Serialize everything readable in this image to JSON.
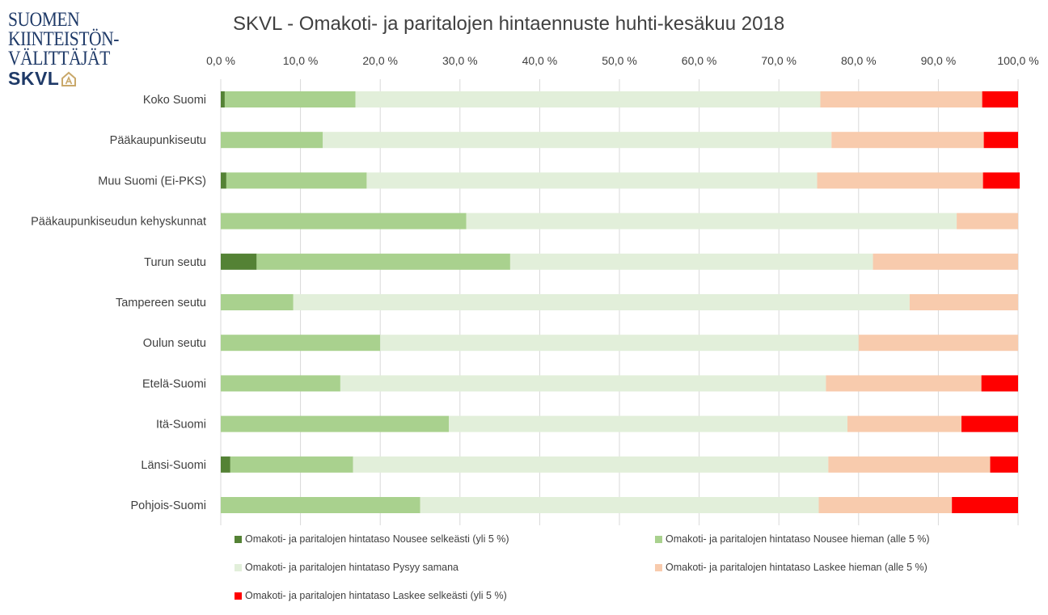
{
  "logo": {
    "line1": "SUOMEN",
    "line2": "KIINTEISTÖN-",
    "line3": "VÄLITTÄJÄT",
    "brand": "SKVL"
  },
  "colors": {
    "nousee_selkeasti": "#548235",
    "nousee_hieman": "#a9d18e",
    "pysyy_samana": "#e2efda",
    "laskee_hieman": "#f8cbad",
    "laskee_selkeasti": "#ff0000",
    "gridline": "#d9d9d9",
    "text": "#404040"
  },
  "chart_data": {
    "type": "bar",
    "orientation": "horizontal",
    "stacked": true,
    "title": "SKVL - Omakoti- ja paritalojen hintaennuste huhti-kesäkuu 2018",
    "xlim": [
      0,
      100
    ],
    "x_ticks": [
      "0,0 %",
      "10,0 %",
      "20,0 %",
      "30,0 %",
      "40,0 %",
      "50,0 %",
      "60,0 %",
      "70,0 %",
      "80,0 %",
      "90,0 %",
      "100,0 %"
    ],
    "x_axis_position": "top",
    "grid": true,
    "legend_position": "bottom",
    "categories": [
      "Koko Suomi",
      "Pääkaupunkiseutu",
      "Muu Suomi (Ei-PKS)",
      "Pääkaupunkiseudun kehyskunnat",
      "Turun seutu",
      "Tampereen seutu",
      "Oulun seutu",
      "Etelä-Suomi",
      "Itä-Suomi",
      "Länsi-Suomi",
      "Pohjois-Suomi"
    ],
    "series": [
      {
        "name": "Omakoti- ja paritalojen hintataso Nousee selkeästi (yli 5 %)",
        "color_key": "nousee_selkeasti",
        "values": [
          0.5,
          0,
          0.7,
          0,
          4.5,
          0,
          0,
          0,
          0,
          1.2,
          0
        ]
      },
      {
        "name": "Omakoti- ja paritalojen hintataso Nousee hieman (alle 5 %)",
        "color_key": "nousee_hieman",
        "values": [
          16.4,
          12.8,
          17.6,
          30.8,
          31.8,
          9.1,
          20.0,
          15.0,
          28.6,
          15.4,
          25.0
        ]
      },
      {
        "name": "Omakoti- ja paritalojen hintataso Pysyy samana",
        "color_key": "pysyy_samana",
        "values": [
          58.3,
          63.8,
          56.5,
          61.5,
          45.5,
          77.3,
          60.0,
          60.9,
          50.0,
          59.6,
          50.0
        ]
      },
      {
        "name": "Omakoti- ja paritalojen hintataso Laskee hieman (alle 5 %)",
        "color_key": "laskee_hieman",
        "values": [
          20.3,
          19.1,
          20.8,
          7.7,
          18.2,
          13.6,
          20.0,
          19.5,
          14.3,
          20.3,
          16.7
        ]
      },
      {
        "name": "Omakoti- ja paritalojen hintataso Laskee selkeästi (yli 5 %)",
        "color_key": "laskee_selkeasti",
        "values": [
          4.5,
          4.3,
          4.6,
          0,
          0,
          0,
          0,
          4.6,
          7.1,
          3.5,
          8.3
        ]
      }
    ]
  }
}
